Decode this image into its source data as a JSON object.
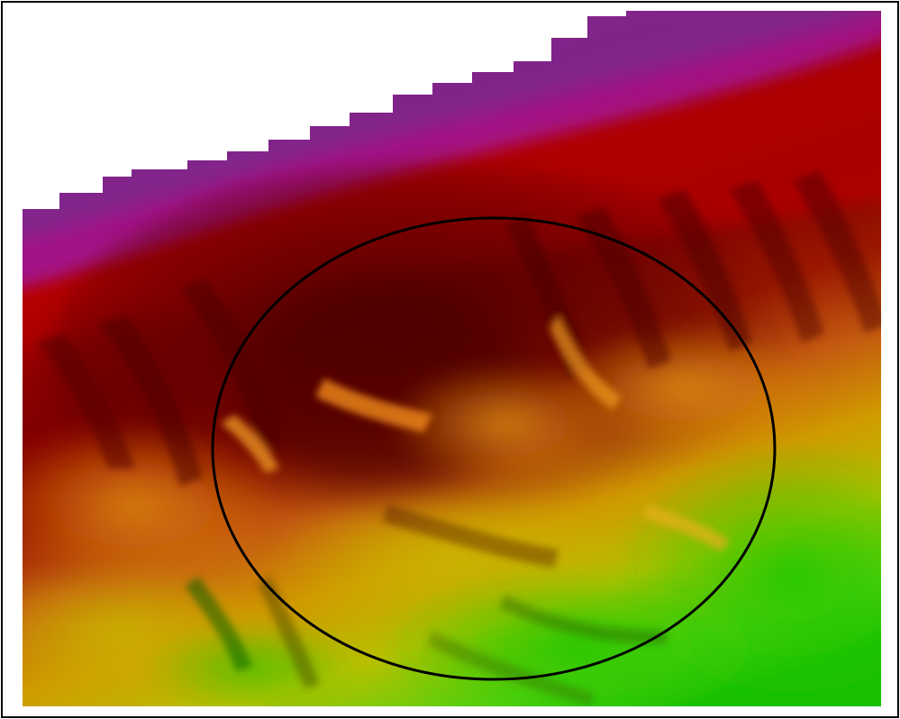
{
  "view": {
    "type": "3d-shaded-relief-terrain",
    "colormap": [
      "#6a0a7a",
      "#a8189a",
      "#b80000",
      "#7a0000",
      "#c84a10",
      "#d4a000",
      "#b8c000",
      "#3ccc10",
      "#18c000"
    ],
    "frame_color": "#000000",
    "background": "#ffffff"
  },
  "annotation": {
    "shape": "ellipse",
    "stroke": "#000000",
    "meaning": "highlighted-region"
  }
}
